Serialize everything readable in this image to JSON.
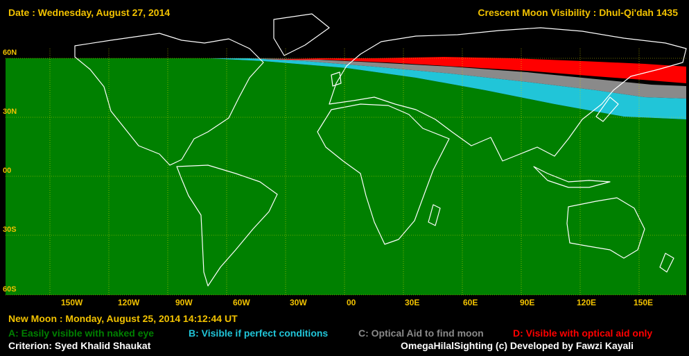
{
  "header": {
    "date": "Date : Wednesday, August 27, 2014",
    "title": "Crescent Moon Visibility : Dhul-Qi'dah  1435"
  },
  "lat_labels": [
    "60N",
    "30N",
    "00",
    "30S",
    "60S"
  ],
  "lon_labels": [
    "150W",
    "120W",
    "90W",
    "60W",
    "30W",
    "00",
    "30E",
    "60E",
    "90E",
    "120E",
    "150E"
  ],
  "new_moon": "New Moon : Monday, August 25, 2014  14:12:44  UT",
  "legend": [
    {
      "text": "A: Easily visible with naked eye",
      "color": "#008000"
    },
    {
      "text": "B: Visible if perfect conditions",
      "color": "#21c5d8"
    },
    {
      "text": "C: Optical Aid to find moon",
      "color": "#8a8a8a"
    },
    {
      "text": "D: Visible with optical aid only",
      "color": "#ff0000"
    }
  ],
  "criterion": "Criterion: Syed Khalid Shaukat",
  "credit": "OmegaHilalSighting  (c)  Developed by Fawzi Kayali",
  "colors": {
    "accent": "#f2c200",
    "zone_a": "#008000",
    "zone_b": "#21c5d8",
    "zone_c": "#8a8a8a",
    "zone_d": "#ff0000",
    "coastline": "#ffffff",
    "grid": "#d8d800"
  }
}
